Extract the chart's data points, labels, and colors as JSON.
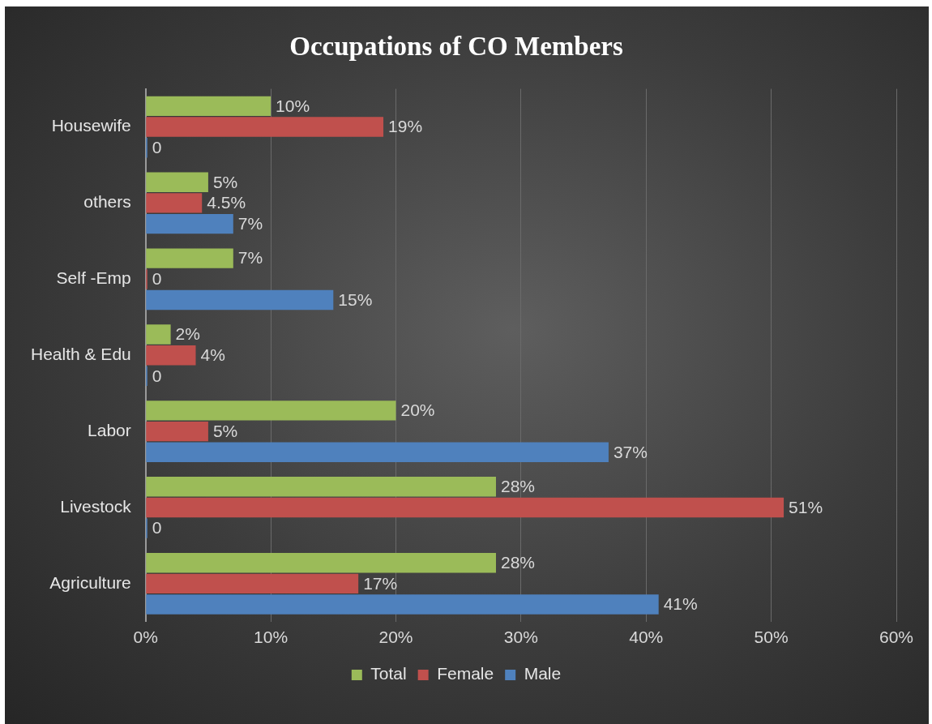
{
  "chart_data": {
    "type": "bar",
    "orientation": "horizontal",
    "title": "Occupations of CO Members",
    "categories": [
      "Housewife",
      "others",
      "Self -Emp",
      "Health & Edu",
      "Labor",
      "Livestock",
      "Agriculture"
    ],
    "series": [
      {
        "name": "Total",
        "color": "#9bbb59",
        "values": [
          10,
          5,
          7,
          2,
          20,
          28,
          28
        ],
        "value_labels": [
          "10%",
          "5%",
          "7%",
          "2%",
          "20%",
          "28%",
          "28%"
        ]
      },
      {
        "name": "Female",
        "color": "#c0504d",
        "values": [
          19,
          4.5,
          0,
          4,
          5,
          51,
          17
        ],
        "value_labels": [
          "19%",
          "4.5%",
          "0",
          "4%",
          "5%",
          "51%",
          "17%"
        ]
      },
      {
        "name": "Male",
        "color": "#4f81bd",
        "values": [
          0,
          7,
          15,
          0,
          37,
          0,
          41
        ],
        "value_labels": [
          "0",
          "7%",
          "15%",
          "0",
          "37%",
          "0",
          "41%"
        ]
      }
    ],
    "xlim": [
      0,
      60
    ],
    "xticks": [
      {
        "value": 0,
        "label": "0%"
      },
      {
        "value": 10,
        "label": "10%"
      },
      {
        "value": 20,
        "label": "20%"
      },
      {
        "value": 30,
        "label": "30%"
      },
      {
        "value": 40,
        "label": "40%"
      },
      {
        "value": 50,
        "label": "50%"
      },
      {
        "value": 60,
        "label": "60%"
      }
    ],
    "grid": "x",
    "legend": "bottom"
  }
}
